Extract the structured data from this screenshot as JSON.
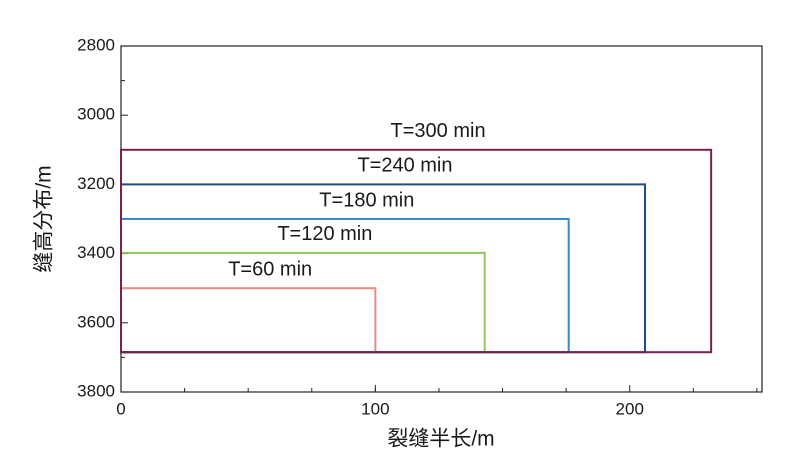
{
  "chart_data": {
    "type": "rectangle",
    "x_label": "裂缝半长/m",
    "y_label": "缝高分布/m",
    "xlim": [
      0,
      252
    ],
    "xticks": [
      0,
      100,
      200
    ],
    "ylim": [
      2800,
      3800
    ],
    "yticks": [
      2800,
      3000,
      3200,
      3400,
      3600,
      3800
    ],
    "y_inverted": true,
    "series": [
      {
        "name": "T=60 min",
        "color": "#f08a80",
        "length": 100,
        "top": 3500,
        "bottom": 3685
      },
      {
        "name": "T=120 min",
        "color": "#8fca5c",
        "length": 143,
        "top": 3398,
        "bottom": 3685
      },
      {
        "name": "T=180 min",
        "color": "#3a89c4",
        "length": 176,
        "top": 3300,
        "bottom": 3685
      },
      {
        "name": "T=240 min",
        "color": "#1e4d8c",
        "length": 206,
        "top": 3200,
        "bottom": 3685
      },
      {
        "name": "T=300 min",
        "color": "#7a1f4f",
        "length": 232,
        "top": 3100,
        "bottom": 3685
      }
    ]
  }
}
